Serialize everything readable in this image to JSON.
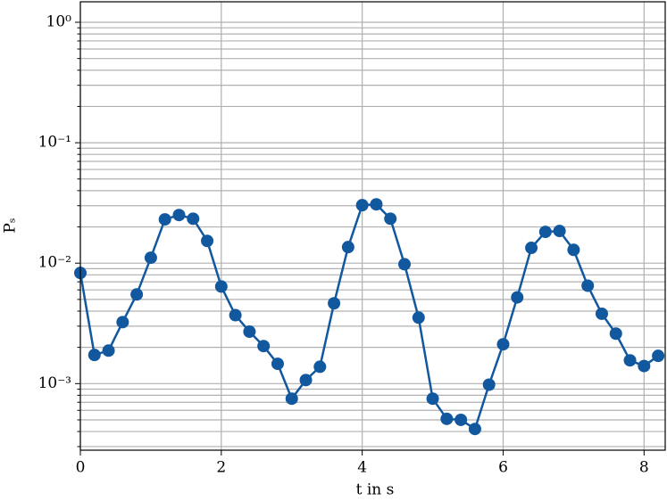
{
  "chart_data": {
    "type": "line",
    "x_label": "t in s",
    "y_label": "Pₛ",
    "log_y": true,
    "grid": true,
    "x": [
      0,
      0.2,
      0.4,
      0.6,
      0.8,
      1.0,
      1.2,
      1.4,
      1.6,
      1.8,
      2.0,
      2.2,
      2.4,
      2.6,
      2.8,
      3.0,
      3.2,
      3.4,
      3.6,
      3.8,
      4.0,
      4.2,
      4.4,
      4.6,
      4.8,
      5.0,
      5.2,
      5.4,
      5.6,
      5.8,
      6.0,
      6.2,
      6.4,
      6.6,
      6.8,
      7.0,
      7.2,
      7.4,
      7.6,
      7.8,
      8.0,
      8.2
    ],
    "series": [
      {
        "color": "#12589f",
        "values": [
          0.0083,
          0.00173,
          0.00188,
          0.00324,
          0.0055,
          0.0111,
          0.0231,
          0.0251,
          0.0234,
          0.0153,
          0.0064,
          0.0037,
          0.0027,
          0.00205,
          0.00146,
          0.00075,
          0.00107,
          0.00138,
          0.00464,
          0.0136,
          0.0303,
          0.0308,
          0.0234,
          0.0098,
          0.00353,
          0.00075,
          0.00051,
          0.0005,
          0.00042,
          0.00098,
          0.00212,
          0.0052,
          0.0134,
          0.0182,
          0.0185,
          0.0129,
          0.0065,
          0.0038,
          0.0026,
          0.00156,
          0.0014,
          0.0017
        ]
      }
    ],
    "xlim": [
      0,
      8.3
    ],
    "xticks": [
      0,
      2,
      4,
      6,
      8
    ],
    "ylim": [
      0.00028,
      1.48
    ],
    "yticks": [
      {
        "value": 0.001,
        "label": "10⁻³"
      },
      {
        "value": 0.01,
        "label": "10⁻²"
      },
      {
        "value": 0.1,
        "label": "10⁻¹"
      },
      {
        "value": 1,
        "label": "10⁰"
      }
    ],
    "yminorticks": [
      0.0003,
      0.0004,
      0.0005,
      0.0006,
      0.0007,
      0.0008,
      0.0009,
      0.002,
      0.003,
      0.004,
      0.005,
      0.006,
      0.007,
      0.008,
      0.009,
      0.02,
      0.03,
      0.04,
      0.05,
      0.06,
      0.07,
      0.08,
      0.09,
      0.2,
      0.3,
      0.4,
      0.5,
      0.6,
      0.7,
      0.8,
      0.9
    ]
  }
}
